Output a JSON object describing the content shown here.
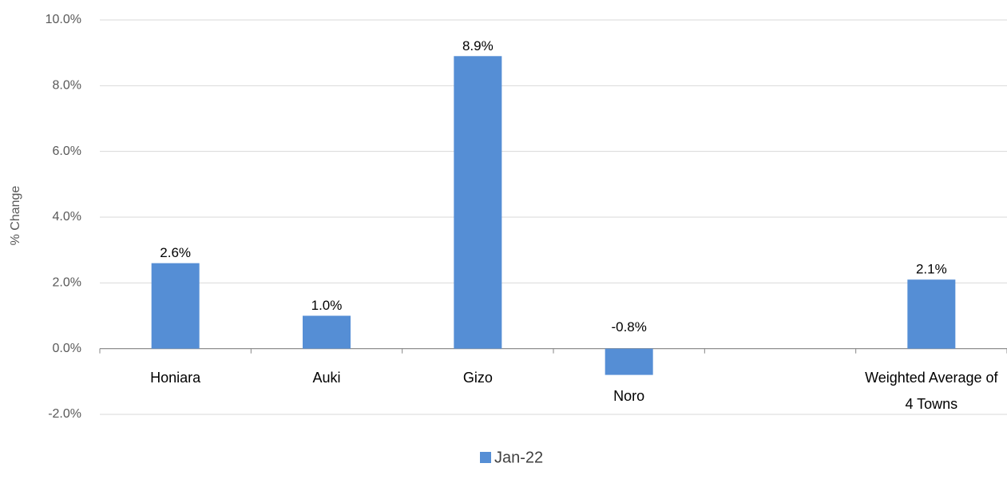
{
  "chart_data": {
    "type": "bar",
    "y_label": "% Change",
    "categories": [
      "Honiara",
      "Auki",
      "Gizo",
      "Noro",
      null,
      "Weighted Average of 4 Towns"
    ],
    "series": [
      {
        "name": "Jan-22",
        "color": "#558ed5",
        "values": [
          2.6,
          1.0,
          8.9,
          -0.8,
          null,
          2.1
        ],
        "value_labels": [
          "2.6%",
          "1.0%",
          "8.9%",
          "-0.8%",
          null,
          "2.1%"
        ]
      }
    ],
    "ylim": [
      -2,
      10
    ],
    "yticks": [
      {
        "value": -2,
        "label": "-2.0%"
      },
      {
        "value": 0,
        "label": "0.0%"
      },
      {
        "value": 2,
        "label": "2.0%"
      },
      {
        "value": 4,
        "label": "4.0%"
      },
      {
        "value": 6,
        "label": "6.0%"
      },
      {
        "value": 8,
        "label": "8.0%"
      },
      {
        "value": 10,
        "label": "10.0%"
      }
    ],
    "grid": true,
    "legend": "bottom"
  }
}
